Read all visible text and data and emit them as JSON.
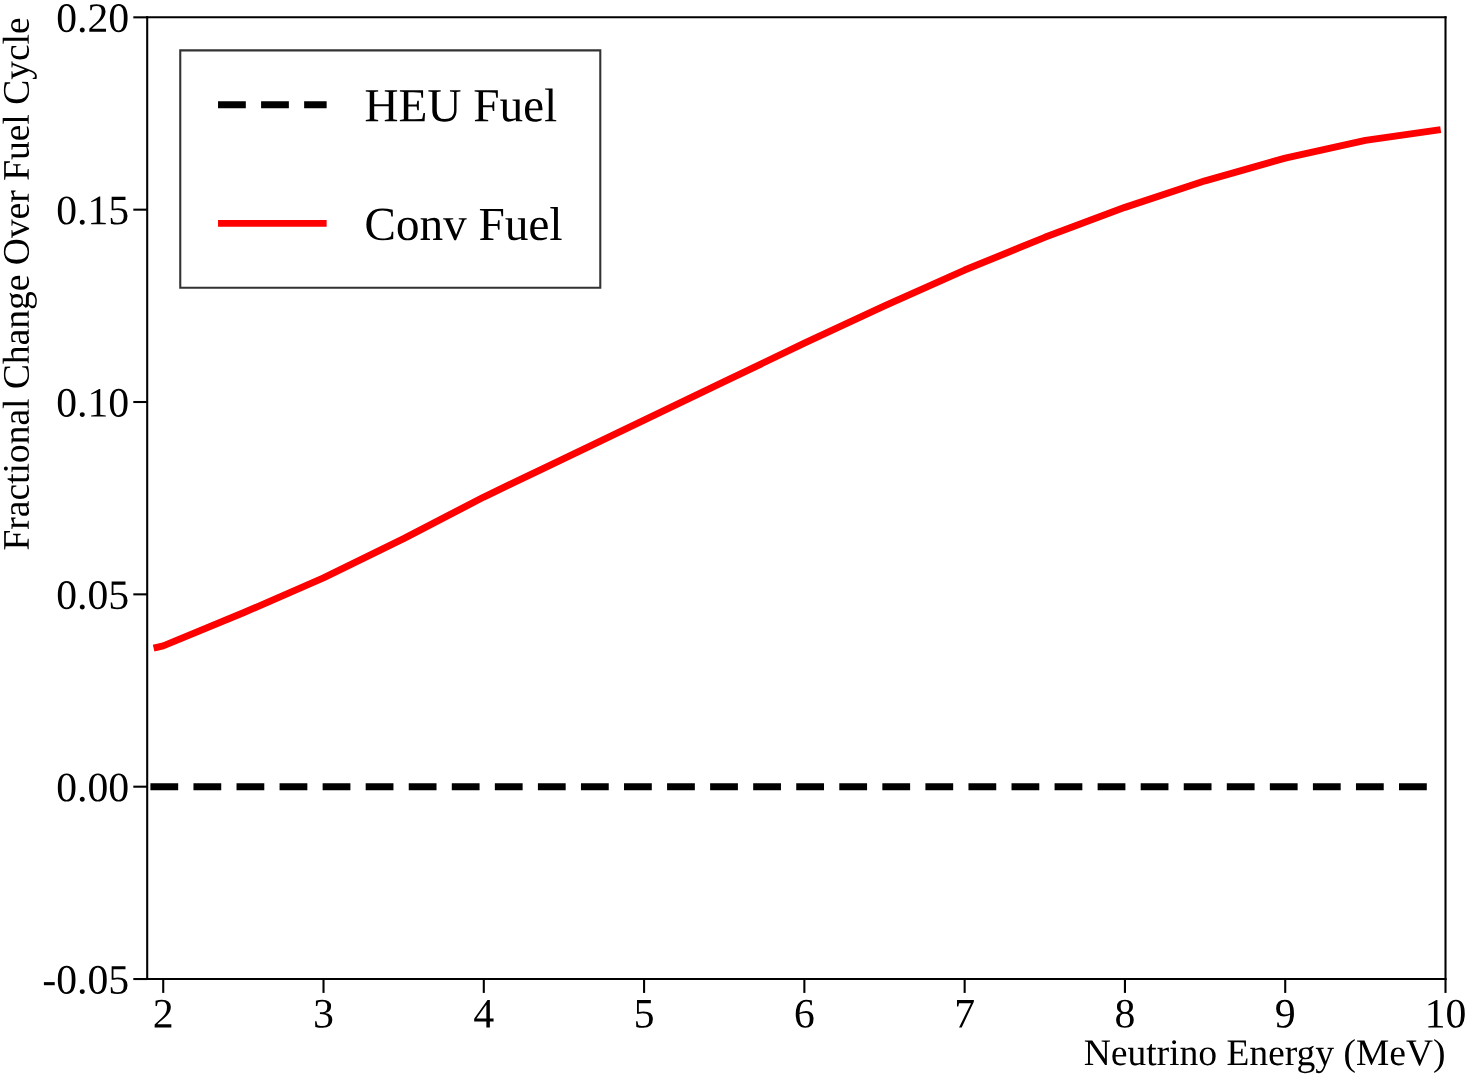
{
  "chart_data": {
    "type": "line",
    "xlabel": "Neutrino Energy (MeV)",
    "ylabel": "Fractional Change Over Fuel Cycle",
    "xlim": [
      1.9,
      10.0
    ],
    "ylim": [
      -0.05,
      0.2
    ],
    "xticks": [
      2,
      3,
      4,
      5,
      6,
      7,
      8,
      9,
      10
    ],
    "yticks": [
      {
        "value": -0.05,
        "label": "-0.05"
      },
      {
        "value": 0,
        "label": "0.00"
      },
      {
        "value": 0.05,
        "label": "0.05"
      },
      {
        "value": 0.1,
        "label": "0.10"
      },
      {
        "value": 0.15,
        "label": "0.15"
      },
      {
        "value": 0.2,
        "label": "0.20"
      }
    ],
    "grid": false,
    "legend": "top left",
    "marker": "none",
    "series": [
      {
        "name": "HEU Fuel",
        "color": "#000000",
        "line_style": "dashed",
        "x": [
          1.92,
          9.97
        ],
        "values": [
          0,
          0
        ]
      },
      {
        "name": "Conv Fuel",
        "color": "#ff0000",
        "line_style": "solid",
        "x": [
          1.94,
          2,
          2.5,
          3,
          3.5,
          4,
          4.5,
          5,
          5.5,
          6,
          6.5,
          7,
          7.5,
          8,
          8.5,
          9,
          9.5,
          9.97
        ],
        "values": [
          0.036,
          0.0366,
          0.0452,
          0.0543,
          0.0645,
          0.0753,
          0.0853,
          0.0953,
          0.1053,
          0.1153,
          0.125,
          0.1343,
          0.1428,
          0.1506,
          0.1575,
          0.1634,
          0.168,
          0.1708
        ]
      }
    ]
  }
}
